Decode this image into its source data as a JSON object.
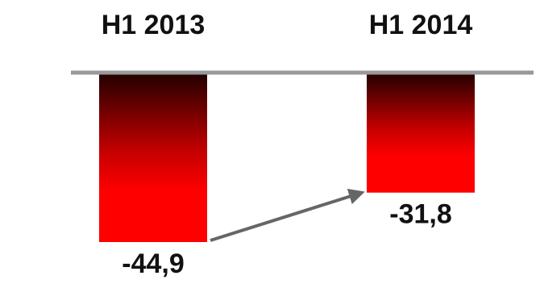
{
  "chart_data": {
    "type": "bar",
    "categories": [
      "H1 2013",
      "H1 2014"
    ],
    "values": [
      -44.9,
      -31.8
    ],
    "value_labels": [
      "-44,9",
      "-31,8"
    ],
    "title": "",
    "xlabel": "",
    "ylabel": "",
    "ylim": [
      -44.9,
      0
    ],
    "grid": false,
    "legend": "none",
    "category_axis_position": "top",
    "annotation": "arrow from H1 2013 bar end to H1 2014 bar end",
    "colors": {
      "bar_top": "#200000",
      "bar_mid": "#c00000",
      "bar_bottom": "#ff0000",
      "axis": "#999999",
      "arrow": "#666666",
      "text": "#111111"
    }
  }
}
